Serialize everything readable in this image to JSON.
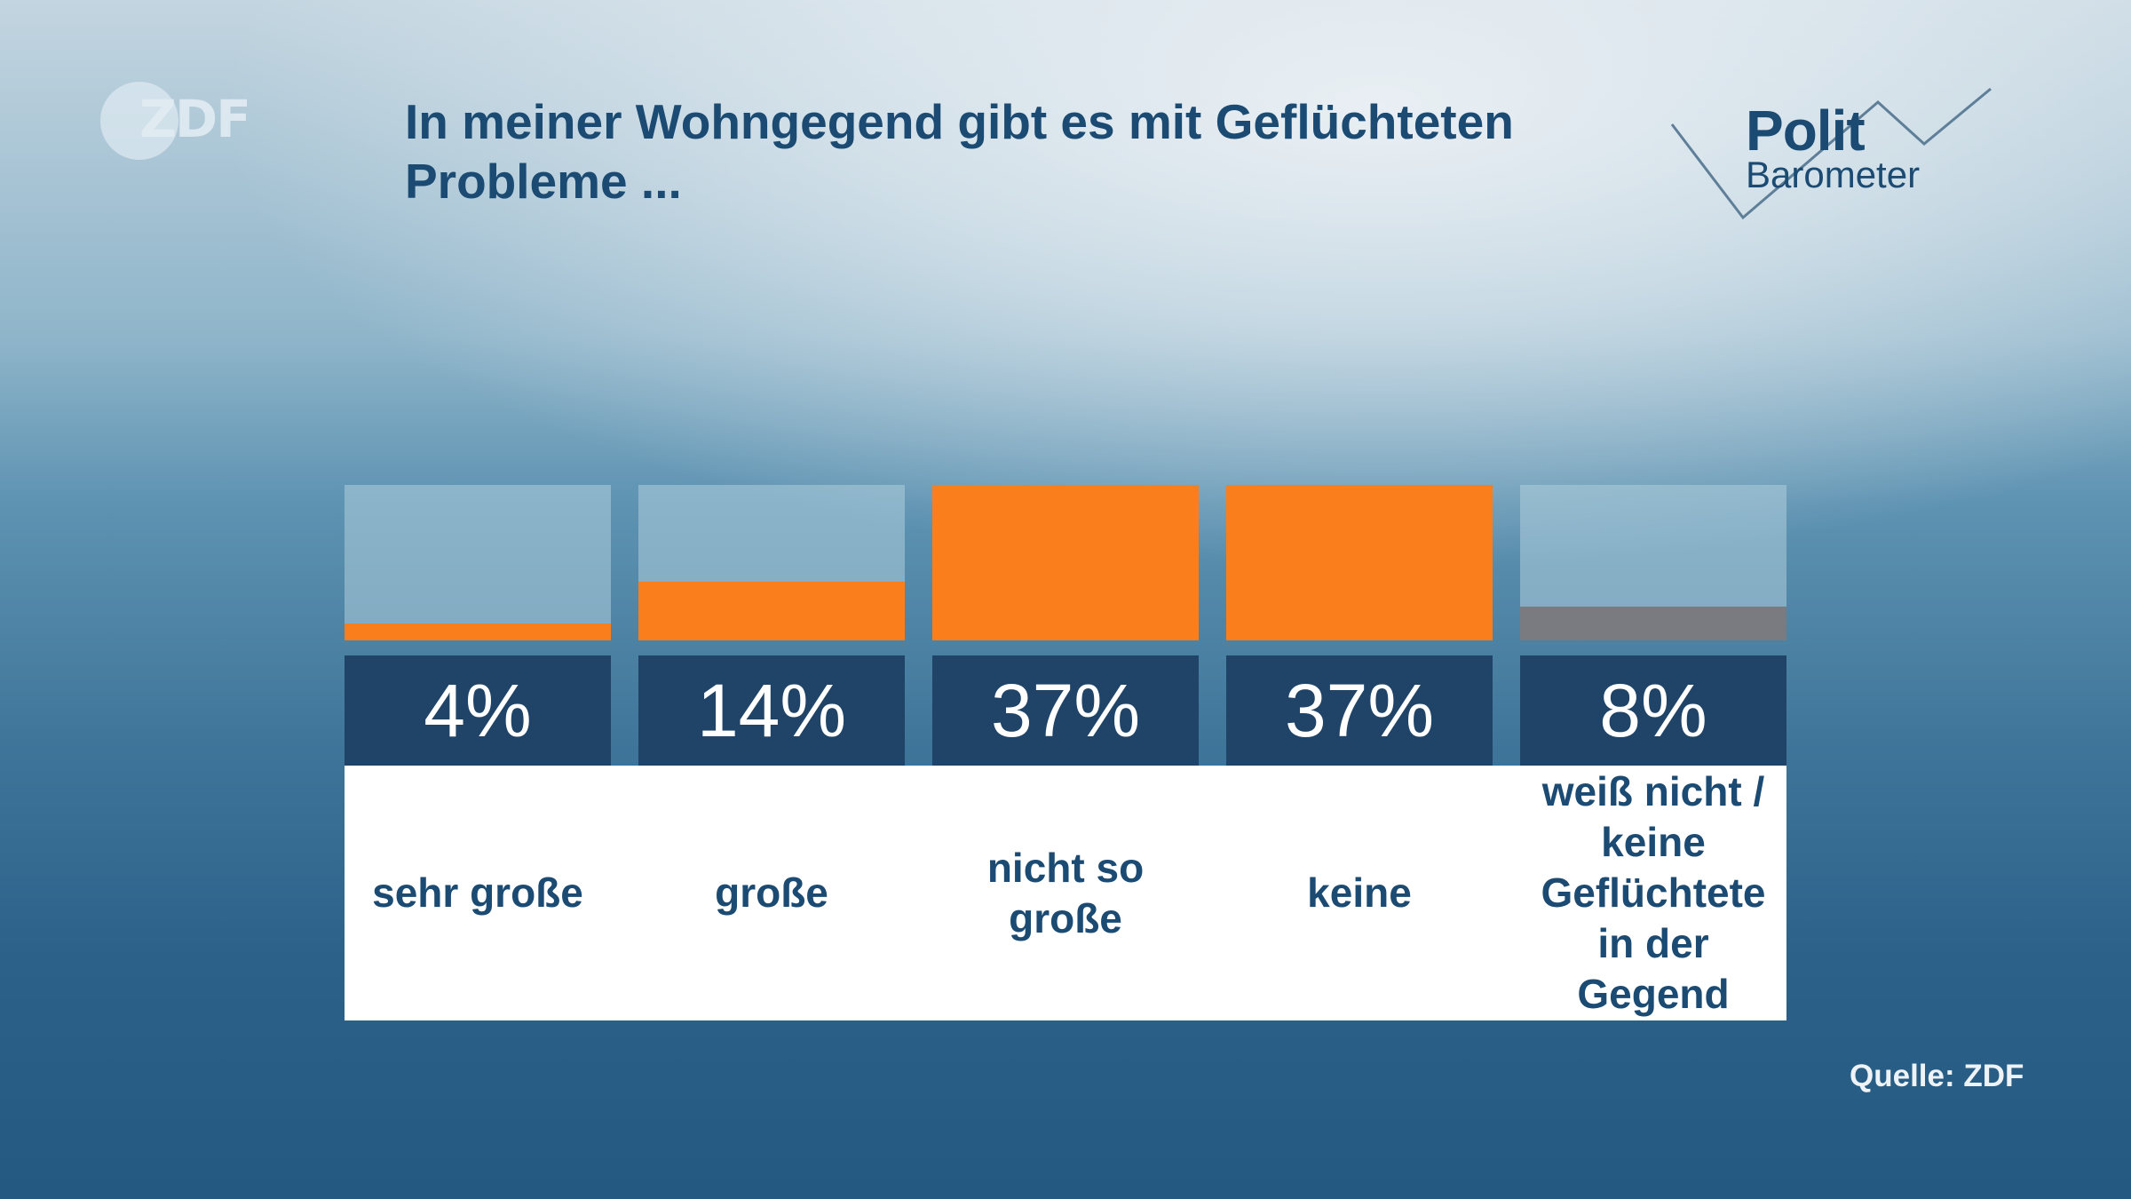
{
  "brand": {
    "logo_text": "ZDF",
    "series_logo_line1": "Polit",
    "series_logo_line2": "Barometer"
  },
  "chart_data": {
    "type": "bar",
    "title": "In meiner Wohngegend gibt es mit Geflüchteten Probleme ...",
    "categories": [
      "sehr große",
      "große",
      "nicht so große",
      "keine",
      "weiß nicht / keine Geflüchtete in der Gegend"
    ],
    "values": [
      4,
      14,
      37,
      37,
      8
    ],
    "value_labels": [
      "4%",
      "14%",
      "37%",
      "37%",
      "8%"
    ],
    "unit": "%",
    "ylim": [
      0,
      37
    ],
    "colors": [
      "#fa7e1c",
      "#fa7e1c",
      "#fa7e1c",
      "#fa7e1c",
      "#7a7b80"
    ],
    "grid": false,
    "source": "Quelle: ZDF"
  }
}
